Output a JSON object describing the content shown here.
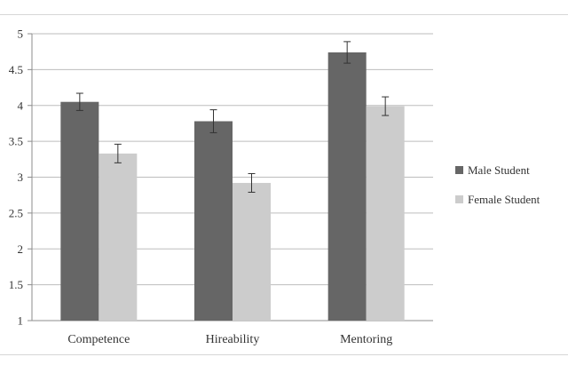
{
  "chart_data": {
    "type": "bar",
    "categories": [
      "Competence",
      "Hireability",
      "Mentoring"
    ],
    "series": [
      {
        "name": "Male Student",
        "values": [
          4.05,
          3.78,
          4.74
        ],
        "errors": [
          0.12,
          0.16,
          0.15
        ],
        "color": "#666666"
      },
      {
        "name": "Female Student",
        "values": [
          3.33,
          2.92,
          3.99
        ],
        "errors": [
          0.13,
          0.13,
          0.13
        ],
        "color": "#cccccc"
      }
    ],
    "yticks": [
      "1",
      "1.5",
      "2",
      "2.5",
      "3",
      "3.5",
      "4",
      "4.5",
      "5"
    ],
    "ylim": [
      1,
      5
    ],
    "grid": true,
    "legend_position": "right",
    "title": "",
    "xlabel": "",
    "ylabel": ""
  }
}
